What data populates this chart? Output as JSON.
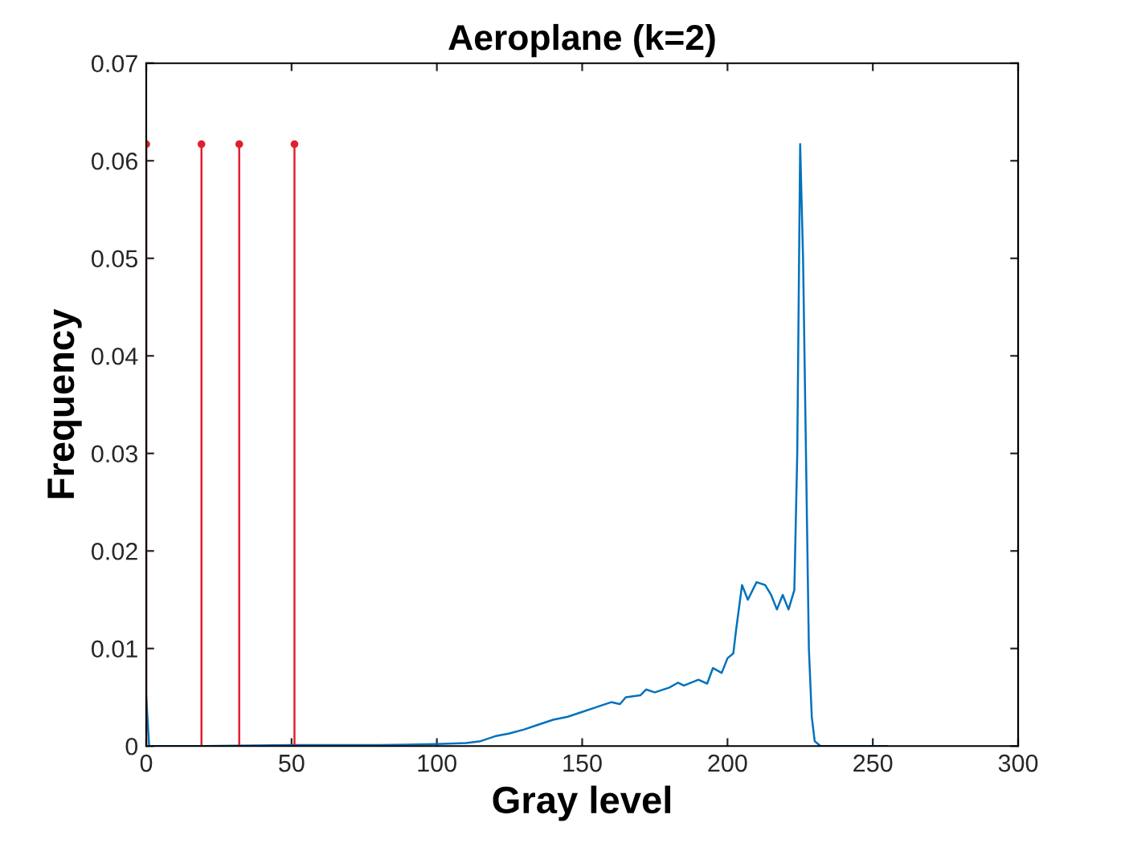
{
  "chart_data": {
    "type": "line",
    "title": "Aeroplane (k=2)",
    "xlabel": "Gray level",
    "ylabel": "Frequency",
    "xlim": [
      0,
      300
    ],
    "xticks": [
      0,
      50,
      100,
      150,
      200,
      250,
      300
    ],
    "ylim": [
      0,
      0.07
    ],
    "yticks": [
      0,
      0.01,
      0.02,
      0.03,
      0.04,
      0.05,
      0.06,
      0.07
    ],
    "grid": false,
    "legend": false,
    "series": [
      {
        "color": "#0072bd",
        "x": [
          0,
          1,
          2,
          20,
          50,
          80,
          100,
          110,
          115,
          120,
          125,
          130,
          135,
          140,
          145,
          150,
          155,
          160,
          163,
          165,
          170,
          172,
          175,
          180,
          183,
          185,
          190,
          193,
          195,
          198,
          200,
          202,
          203,
          205,
          207,
          210,
          213,
          215,
          217,
          219,
          221,
          223,
          224,
          225,
          226,
          227,
          228,
          229,
          230,
          232,
          240,
          255
        ],
        "values": [
          0.005,
          0,
          0,
          0,
          0.0001,
          0.0001,
          0.0002,
          0.0003,
          0.0005,
          0.001,
          0.0013,
          0.0017,
          0.0022,
          0.0027,
          0.003,
          0.0035,
          0.004,
          0.0045,
          0.0043,
          0.005,
          0.0052,
          0.0058,
          0.0055,
          0.006,
          0.0065,
          0.0062,
          0.0068,
          0.0064,
          0.008,
          0.0075,
          0.009,
          0.0095,
          0.012,
          0.0165,
          0.015,
          0.0168,
          0.0165,
          0.0155,
          0.014,
          0.0155,
          0.014,
          0.016,
          0.03,
          0.0617,
          0.05,
          0.03,
          0.01,
          0.003,
          0.0005,
          0,
          0,
          0
        ]
      },
      {
        "type": "lollipop",
        "color": "#e0202f",
        "x": [
          0,
          19,
          32,
          51
        ],
        "values": [
          0.0617,
          0.0617,
          0.0617,
          0.0617
        ],
        "marker": "circle"
      }
    ]
  }
}
